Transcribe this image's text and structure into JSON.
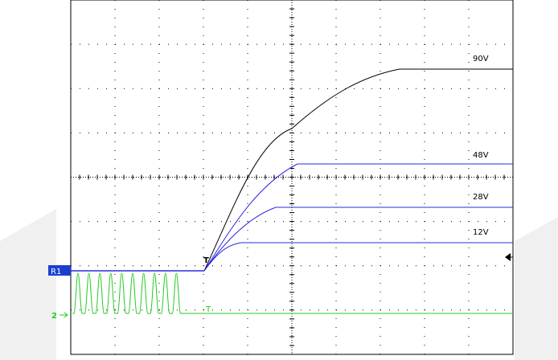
{
  "traces": {
    "trace_90": "90V",
    "trace_48": "48V",
    "trace_28": "28V",
    "trace_12": "12V"
  },
  "markers": {
    "channel_1": "R1",
    "channel_2": "2",
    "trigger_1": "T",
    "trigger_2": "T"
  }
}
